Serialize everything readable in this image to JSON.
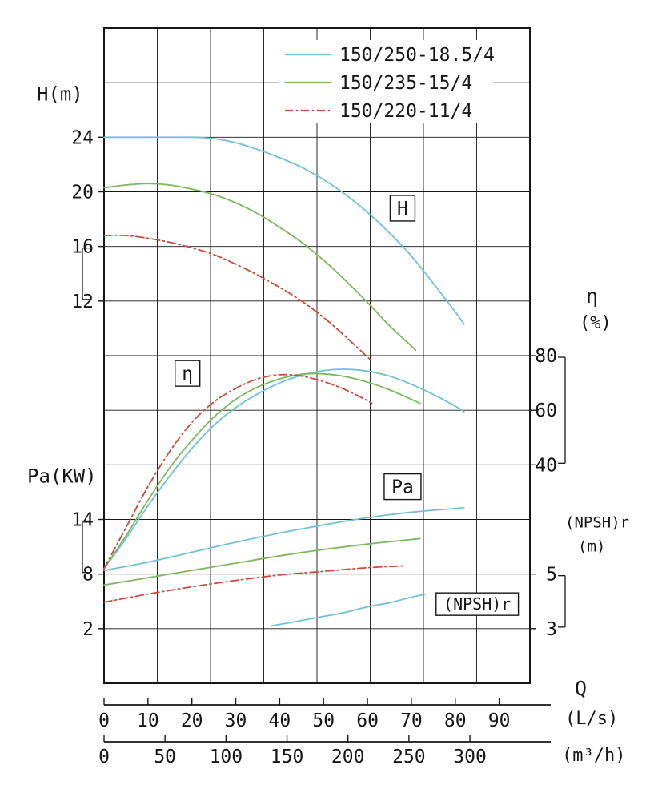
{
  "chart_data": {
    "type": "line",
    "title": "",
    "grid": {
      "visible": true,
      "rows": 12,
      "cols": 8
    },
    "legend": {
      "position": "top-center",
      "items": [
        {
          "label": "150/250-18.5/4",
          "color": "#70c0d8",
          "style": "solid"
        },
        {
          "label": "150/235-15/4",
          "color": "#7cb85c",
          "style": "solid"
        },
        {
          "label": "150/220-11/4",
          "color": "#cb4a3c",
          "style": "dash-dot"
        }
      ]
    },
    "x_axis": {
      "name": "Q",
      "ls_max": 97,
      "scales": [
        {
          "unit": "(L/s)",
          "ticks": [
            0,
            10,
            20,
            30,
            40,
            50,
            60,
            70,
            80,
            90
          ],
          "ls_per_unit": 1
        },
        {
          "unit": "(m³/h)",
          "ticks": [
            0,
            50,
            100,
            150,
            200,
            250,
            300
          ],
          "ls_per_unit": 0.27778
        }
      ]
    },
    "y_scales": {
      "H": {
        "title": "H(m)",
        "unit": "",
        "side": "left",
        "ticks": [
          24,
          20,
          16,
          12
        ],
        "top_value": 32,
        "units_per_row": 4,
        "bracket": [
          16,
          12
        ]
      },
      "eta": {
        "title": "η",
        "unit": "(%)",
        "side": "right",
        "ticks": [
          80,
          60,
          40
        ],
        "top_value": 200,
        "units_per_row": 20,
        "bracket": [
          80,
          40
        ]
      },
      "Pa": {
        "title": "Pa(KW)",
        "unit": "",
        "side": "left",
        "ticks": [
          14,
          8,
          2
        ],
        "top_value": 68,
        "units_per_row": 6,
        "bracket": [
          14,
          8
        ]
      },
      "NPSH": {
        "title": "(NPSH)r",
        "unit": "(m)",
        "side": "right",
        "ticks": [
          5,
          3
        ],
        "top_value": 25,
        "units_per_row": 2,
        "bracket": [
          5,
          3
        ]
      }
    },
    "curve_labels": [
      {
        "text": "H",
        "q": 68,
        "scale": "H",
        "value": 18.8
      },
      {
        "text": "η",
        "q": 19,
        "scale": "eta",
        "value": 73.5
      },
      {
        "text": "Pa",
        "q": 68,
        "scale": "Pa",
        "value": 17.6
      },
      {
        "text": "(NPSH)r",
        "q": 85,
        "scale": "NPSH",
        "value": 3.9
      }
    ],
    "series": [
      {
        "name": "H 150/250-18.5/4",
        "quantity": "H",
        "model": "150/250-18.5/4",
        "points": [
          [
            0,
            24
          ],
          [
            10,
            24
          ],
          [
            20,
            24
          ],
          [
            25,
            23.9
          ],
          [
            30,
            23.6
          ],
          [
            35,
            23.1
          ],
          [
            40,
            22.5
          ],
          [
            45,
            21.8
          ],
          [
            50,
            20.9
          ],
          [
            55,
            19.8
          ],
          [
            60,
            18.5
          ],
          [
            65,
            17.0
          ],
          [
            70,
            15.3
          ],
          [
            75,
            13.3
          ],
          [
            80,
            11.2
          ],
          [
            82,
            10.3
          ]
        ]
      },
      {
        "name": "H 150/235-15/4",
        "quantity": "H",
        "model": "150/235-15/4",
        "points": [
          [
            0,
            20.3
          ],
          [
            5,
            20.5
          ],
          [
            10,
            20.6
          ],
          [
            15,
            20.5
          ],
          [
            20,
            20.2
          ],
          [
            25,
            19.8
          ],
          [
            30,
            19.2
          ],
          [
            35,
            18.4
          ],
          [
            40,
            17.4
          ],
          [
            45,
            16.3
          ],
          [
            50,
            15.0
          ],
          [
            55,
            13.5
          ],
          [
            60,
            11.9
          ],
          [
            65,
            10.2
          ],
          [
            70,
            8.7
          ],
          [
            71,
            8.4
          ]
        ]
      },
      {
        "name": "H 150/220-11/4",
        "quantity": "H",
        "model": "150/220-11/4",
        "points": [
          [
            0,
            16.8
          ],
          [
            5,
            16.8
          ],
          [
            10,
            16.6
          ],
          [
            15,
            16.3
          ],
          [
            20,
            15.9
          ],
          [
            25,
            15.4
          ],
          [
            30,
            14.7
          ],
          [
            35,
            13.9
          ],
          [
            40,
            13.0
          ],
          [
            45,
            12.0
          ],
          [
            50,
            10.8
          ],
          [
            55,
            9.4
          ],
          [
            60,
            7.9
          ],
          [
            61,
            7.6
          ]
        ]
      },
      {
        "name": "eta 150/250-18.5/4",
        "quantity": "eta",
        "model": "150/250-18.5/4",
        "points": [
          [
            0,
            2
          ],
          [
            5,
            13
          ],
          [
            10,
            25
          ],
          [
            15,
            36
          ],
          [
            20,
            46
          ],
          [
            25,
            54.5
          ],
          [
            30,
            61
          ],
          [
            35,
            66
          ],
          [
            40,
            70
          ],
          [
            45,
            72.8
          ],
          [
            50,
            74.5
          ],
          [
            55,
            75
          ],
          [
            60,
            74.3
          ],
          [
            65,
            72.5
          ],
          [
            70,
            69.5
          ],
          [
            75,
            65.8
          ],
          [
            80,
            61.5
          ],
          [
            82,
            59.5
          ]
        ]
      },
      {
        "name": "eta 150/235-15/4",
        "quantity": "eta",
        "model": "150/235-15/4",
        "points": [
          [
            0,
            2
          ],
          [
            5,
            14
          ],
          [
            10,
            27
          ],
          [
            15,
            39
          ],
          [
            20,
            49
          ],
          [
            25,
            57.5
          ],
          [
            30,
            64
          ],
          [
            35,
            68.5
          ],
          [
            40,
            71.5
          ],
          [
            45,
            73.2
          ],
          [
            50,
            73.3
          ],
          [
            55,
            72.3
          ],
          [
            60,
            70.3
          ],
          [
            65,
            67.5
          ],
          [
            70,
            64
          ],
          [
            72,
            62.5
          ]
        ]
      },
      {
        "name": "eta 150/220-11/4",
        "quantity": "eta",
        "model": "150/220-11/4",
        "points": [
          [
            0,
            2
          ],
          [
            5,
            17
          ],
          [
            10,
            32
          ],
          [
            15,
            45
          ],
          [
            20,
            55.5
          ],
          [
            25,
            63
          ],
          [
            30,
            68
          ],
          [
            35,
            71.5
          ],
          [
            40,
            73
          ],
          [
            45,
            72.5
          ],
          [
            50,
            70.5
          ],
          [
            55,
            67.5
          ],
          [
            60,
            63.5
          ],
          [
            61,
            62.5
          ]
        ]
      },
      {
        "name": "Pa 150/250-18.5/4",
        "quantity": "Pa",
        "model": "150/250-18.5/4",
        "points": [
          [
            0,
            8.4
          ],
          [
            10,
            9.3
          ],
          [
            20,
            10.4
          ],
          [
            30,
            11.5
          ],
          [
            40,
            12.5
          ],
          [
            50,
            13.4
          ],
          [
            60,
            14.2
          ],
          [
            70,
            14.8
          ],
          [
            80,
            15.2
          ],
          [
            82,
            15.3
          ]
        ]
      },
      {
        "name": "Pa 150/235-15/4",
        "quantity": "Pa",
        "model": "150/235-15/4",
        "points": [
          [
            0,
            6.8
          ],
          [
            10,
            7.6
          ],
          [
            20,
            8.4
          ],
          [
            30,
            9.2
          ],
          [
            40,
            10.0
          ],
          [
            50,
            10.7
          ],
          [
            60,
            11.3
          ],
          [
            70,
            11.8
          ],
          [
            72,
            11.9
          ]
        ]
      },
      {
        "name": "Pa 150/220-11/4",
        "quantity": "Pa",
        "model": "150/220-11/4",
        "points": [
          [
            0,
            4.9
          ],
          [
            10,
            5.8
          ],
          [
            20,
            6.6
          ],
          [
            30,
            7.3
          ],
          [
            40,
            7.9
          ],
          [
            50,
            8.3
          ],
          [
            60,
            8.7
          ],
          [
            68,
            8.9
          ]
        ]
      },
      {
        "name": "NPSHr 150/250-18.5/4",
        "quantity": "NPSH",
        "model": "150/250-18.5/4",
        "points": [
          [
            38,
            3.1
          ],
          [
            45,
            3.3
          ],
          [
            50,
            3.45
          ],
          [
            55,
            3.6
          ],
          [
            60,
            3.8
          ],
          [
            65,
            3.95
          ],
          [
            70,
            4.15
          ],
          [
            73,
            4.25
          ]
        ]
      }
    ]
  }
}
